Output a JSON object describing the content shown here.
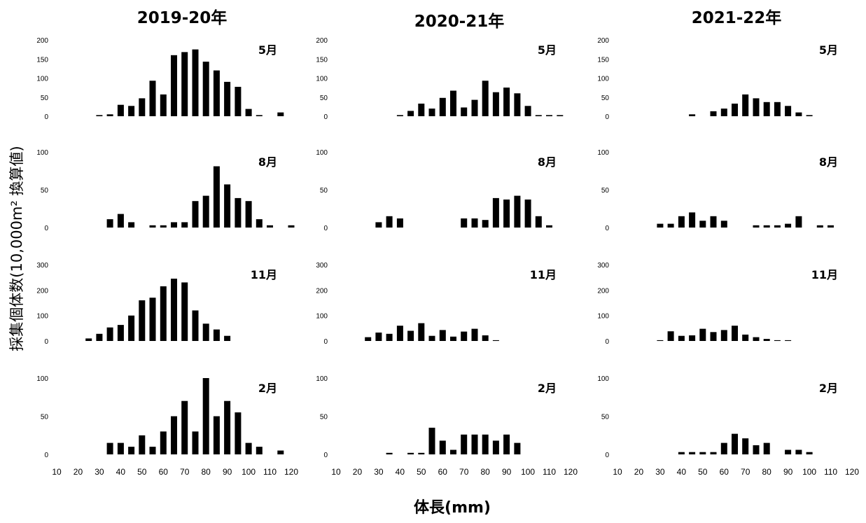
{
  "chart_data": {
    "type": "bar",
    "xlabel": "体長(mm)",
    "ylabel": "採集個体数(10,000m² 換算値)",
    "x_ticks": [
      10,
      20,
      30,
      40,
      50,
      60,
      70,
      80,
      90,
      100,
      110,
      120
    ],
    "bin_centers": [
      25,
      30,
      35,
      40,
      45,
      50,
      55,
      60,
      65,
      70,
      75,
      80,
      85,
      90,
      95,
      100,
      105,
      110,
      115,
      120
    ],
    "columns": [
      {
        "title": "2019-20年",
        "panels": [
          {
            "month": "5月",
            "ylim": [
              0,
              200
            ],
            "yticks": [
              0,
              50,
              100,
              150,
              200
            ],
            "values": [
              0,
              3,
              5,
              30,
              27,
              47,
              93,
              57,
              160,
              168,
              175,
              143,
              120,
              90,
              77,
              19,
              3,
              0,
              10,
              0
            ]
          },
          {
            "month": "8月",
            "ylim": [
              0,
              100
            ],
            "yticks": [
              0,
              50,
              100
            ],
            "values": [
              0,
              0,
              11,
              18,
              7,
              0,
              3,
              3,
              7,
              7,
              35,
              42,
              81,
              57,
              39,
              35,
              11,
              3,
              0,
              3
            ]
          },
          {
            "month": "11月",
            "ylim": [
              0,
              300
            ],
            "yticks": [
              0,
              100,
              200,
              300
            ],
            "values": [
              10,
              28,
              53,
              63,
              100,
              160,
              170,
              215,
              245,
              230,
              120,
              68,
              45,
              20,
              0,
              0,
              0,
              0,
              0,
              0
            ]
          },
          {
            "month": "2月",
            "ylim": [
              0,
              100
            ],
            "yticks": [
              0,
              50,
              100
            ],
            "values": [
              0,
              0,
              15,
              15,
              10,
              25,
              10,
              30,
              50,
              70,
              30,
              100,
              50,
              70,
              55,
              15,
              10,
              0,
              5,
              0
            ]
          }
        ]
      },
      {
        "title": "2020-21年",
        "panels": [
          {
            "month": "5月",
            "ylim": [
              0,
              200
            ],
            "yticks": [
              0,
              50,
              100,
              150,
              200
            ],
            "values": [
              0,
              0,
              0,
              3,
              14,
              33,
              20,
              48,
              67,
              23,
              43,
              93,
              63,
              75,
              60,
              27,
              3,
              3,
              3,
              0
            ]
          },
          {
            "month": "8月",
            "ylim": [
              0,
              100
            ],
            "yticks": [
              0,
              50,
              100
            ],
            "values": [
              0,
              7,
              15,
              12,
              0,
              0,
              0,
              0,
              0,
              12,
              12,
              10,
              39,
              37,
              42,
              37,
              15,
              3,
              0,
              0
            ]
          },
          {
            "month": "11月",
            "ylim": [
              0,
              300
            ],
            "yticks": [
              0,
              100,
              200,
              300
            ],
            "values": [
              15,
              33,
              28,
              60,
              40,
              70,
              20,
              43,
              17,
              37,
              48,
              22,
              3,
              0,
              0,
              0,
              0,
              0,
              0,
              0
            ]
          },
          {
            "month": "2月",
            "ylim": [
              0,
              100
            ],
            "yticks": [
              0,
              50,
              100
            ],
            "values": [
              0,
              0,
              2,
              0,
              2,
              2,
              35,
              18,
              6,
              26,
              26,
              26,
              18,
              26,
              15,
              0,
              0,
              0,
              0,
              0
            ]
          }
        ]
      },
      {
        "title": "2021-22年",
        "panels": [
          {
            "month": "5月",
            "ylim": [
              0,
              200
            ],
            "yticks": [
              0,
              50,
              100,
              150,
              200
            ],
            "values": [
              0,
              0,
              0,
              0,
              5,
              0,
              13,
              20,
              33,
              57,
              47,
              37,
              37,
              27,
              10,
              3,
              0,
              0,
              0,
              0
            ]
          },
          {
            "month": "8月",
            "ylim": [
              0,
              100
            ],
            "yticks": [
              0,
              50,
              100
            ],
            "values": [
              0,
              5,
              5,
              15,
              20,
              9,
              15,
              9,
              0,
              0,
              3,
              3,
              3,
              5,
              15,
              0,
              3,
              3,
              0,
              0
            ]
          },
          {
            "month": "11月",
            "ylim": [
              0,
              300
            ],
            "yticks": [
              0,
              100,
              200,
              300
            ],
            "values": [
              0,
              3,
              38,
              20,
              22,
              48,
              35,
              43,
              60,
              25,
              15,
              8,
              3,
              3,
              0,
              0,
              0,
              0,
              0,
              0
            ]
          },
          {
            "month": "2月",
            "ylim": [
              0,
              100
            ],
            "yticks": [
              0,
              50,
              100
            ],
            "values": [
              0,
              0,
              0,
              3,
              3,
              3,
              3,
              15,
              27,
              21,
              12,
              15,
              0,
              6,
              6,
              3,
              0,
              0,
              0,
              0
            ]
          }
        ]
      }
    ]
  }
}
